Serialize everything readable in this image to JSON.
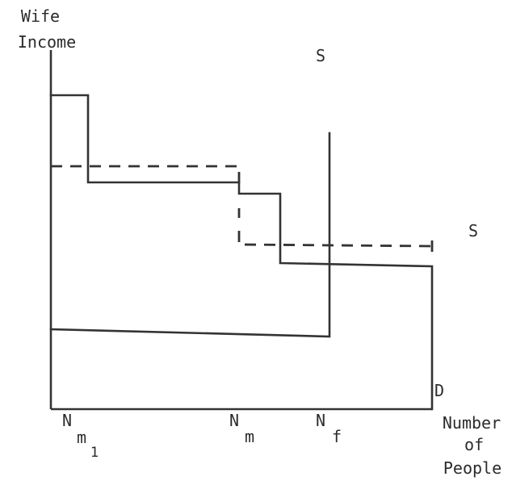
{
  "axes": {
    "y_label_line1": "Wife",
    "y_label_line2": "Income",
    "x_label_line1": "Number",
    "x_label_line2": "of",
    "x_label_line3": "People"
  },
  "curve_labels": {
    "supply": "S",
    "supply_lower": "S",
    "demand": "D"
  },
  "ticks": {
    "n_m1_main": "N",
    "n_m1_sub": "m",
    "n_m1_subsub": "1",
    "n_m_main": "N",
    "n_m_sub": "m",
    "n_f_main": "N",
    "n_f_sub": "f"
  }
}
